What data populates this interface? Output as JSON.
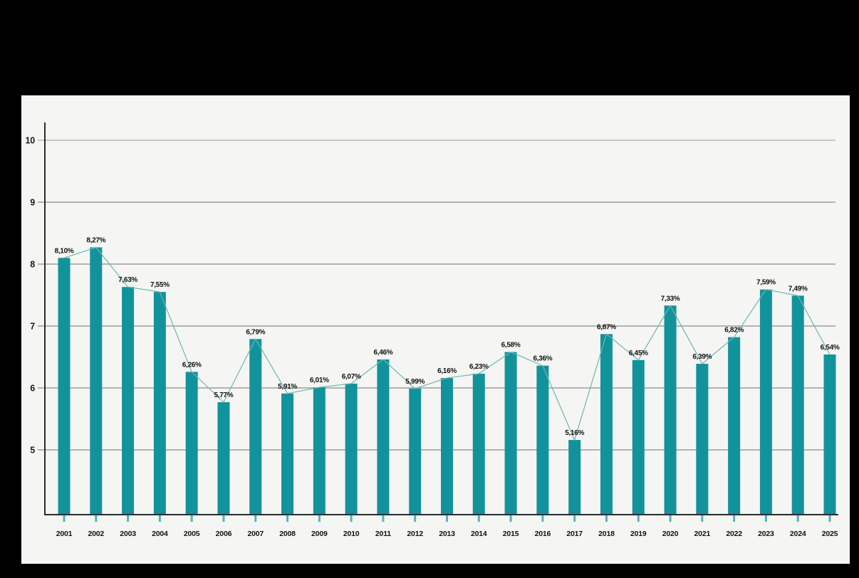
{
  "page": {
    "background_color": "#000000",
    "panel_background_color": "#f5f5f3"
  },
  "chart_data": {
    "type": "bar",
    "title": "",
    "xlabel": "",
    "ylabel": "",
    "categories": [
      "2001",
      "2002",
      "2003",
      "2004",
      "2005",
      "2006",
      "2007",
      "2008",
      "2009",
      "2010",
      "2011",
      "2012",
      "2013",
      "2014",
      "2015",
      "2016",
      "2017",
      "2018",
      "2019",
      "2020",
      "2021",
      "2022",
      "2023",
      "2024",
      "2025"
    ],
    "values": [
      8.1,
      8.27,
      7.63,
      7.55,
      6.26,
      5.77,
      6.79,
      5.91,
      6.01,
      6.07,
      6.46,
      5.99,
      6.16,
      6.23,
      6.58,
      6.36,
      5.16,
      6.87,
      6.45,
      7.33,
      6.39,
      6.82,
      7.59,
      7.49,
      6.54
    ],
    "value_labels": [
      "8,10%",
      "8,27%",
      "7,63%",
      "7,55%",
      "6,26%",
      "5,77%",
      "6,79%",
      "5,91%",
      "6,01%",
      "6,07%",
      "6,46%",
      "5,99%",
      "6,16%",
      "6,23%",
      "6,58%",
      "6,36%",
      "5,16%",
      "6,87%",
      "6,45%",
      "7,33%",
      "6,39%",
      "6,82%",
      "7,59%",
      "7,49%",
      "6,54%"
    ],
    "overlay_trend_line": true,
    "y_ticks": [
      5,
      6,
      7,
      8,
      9,
      10
    ],
    "ylim": [
      3.95,
      10.3
    ],
    "grid": true,
    "legend": false,
    "colors": {
      "bar": "#12939b",
      "trend_line": "#6cb8ae",
      "x_tick": "#4db6bc",
      "axis": "#2b2b2b",
      "grid": "#8c8c8c",
      "grid_top": "#c6c6c6",
      "text": "#111111"
    }
  }
}
